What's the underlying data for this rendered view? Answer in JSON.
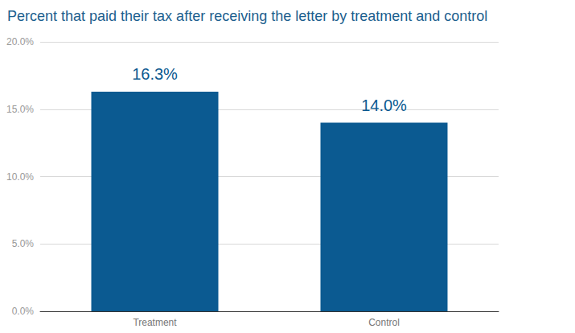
{
  "chart_data": {
    "type": "bar",
    "title": "Percent that paid their tax after receiving the letter by treatment and control",
    "categories": [
      "Treatment",
      "Control"
    ],
    "values": [
      16.3,
      14.0
    ],
    "value_labels": [
      "16.3%",
      "14.0%"
    ],
    "data_labels": true,
    "color": "#0b5a91",
    "ylim": [
      0,
      20
    ],
    "yticks": [
      {
        "value": 0,
        "label": "0.0%"
      },
      {
        "value": 5,
        "label": "5.0%"
      },
      {
        "value": 10,
        "label": "10.0%"
      },
      {
        "value": 15,
        "label": "15.0%"
      },
      {
        "value": 20,
        "label": "20.0%"
      }
    ],
    "grid": true
  }
}
